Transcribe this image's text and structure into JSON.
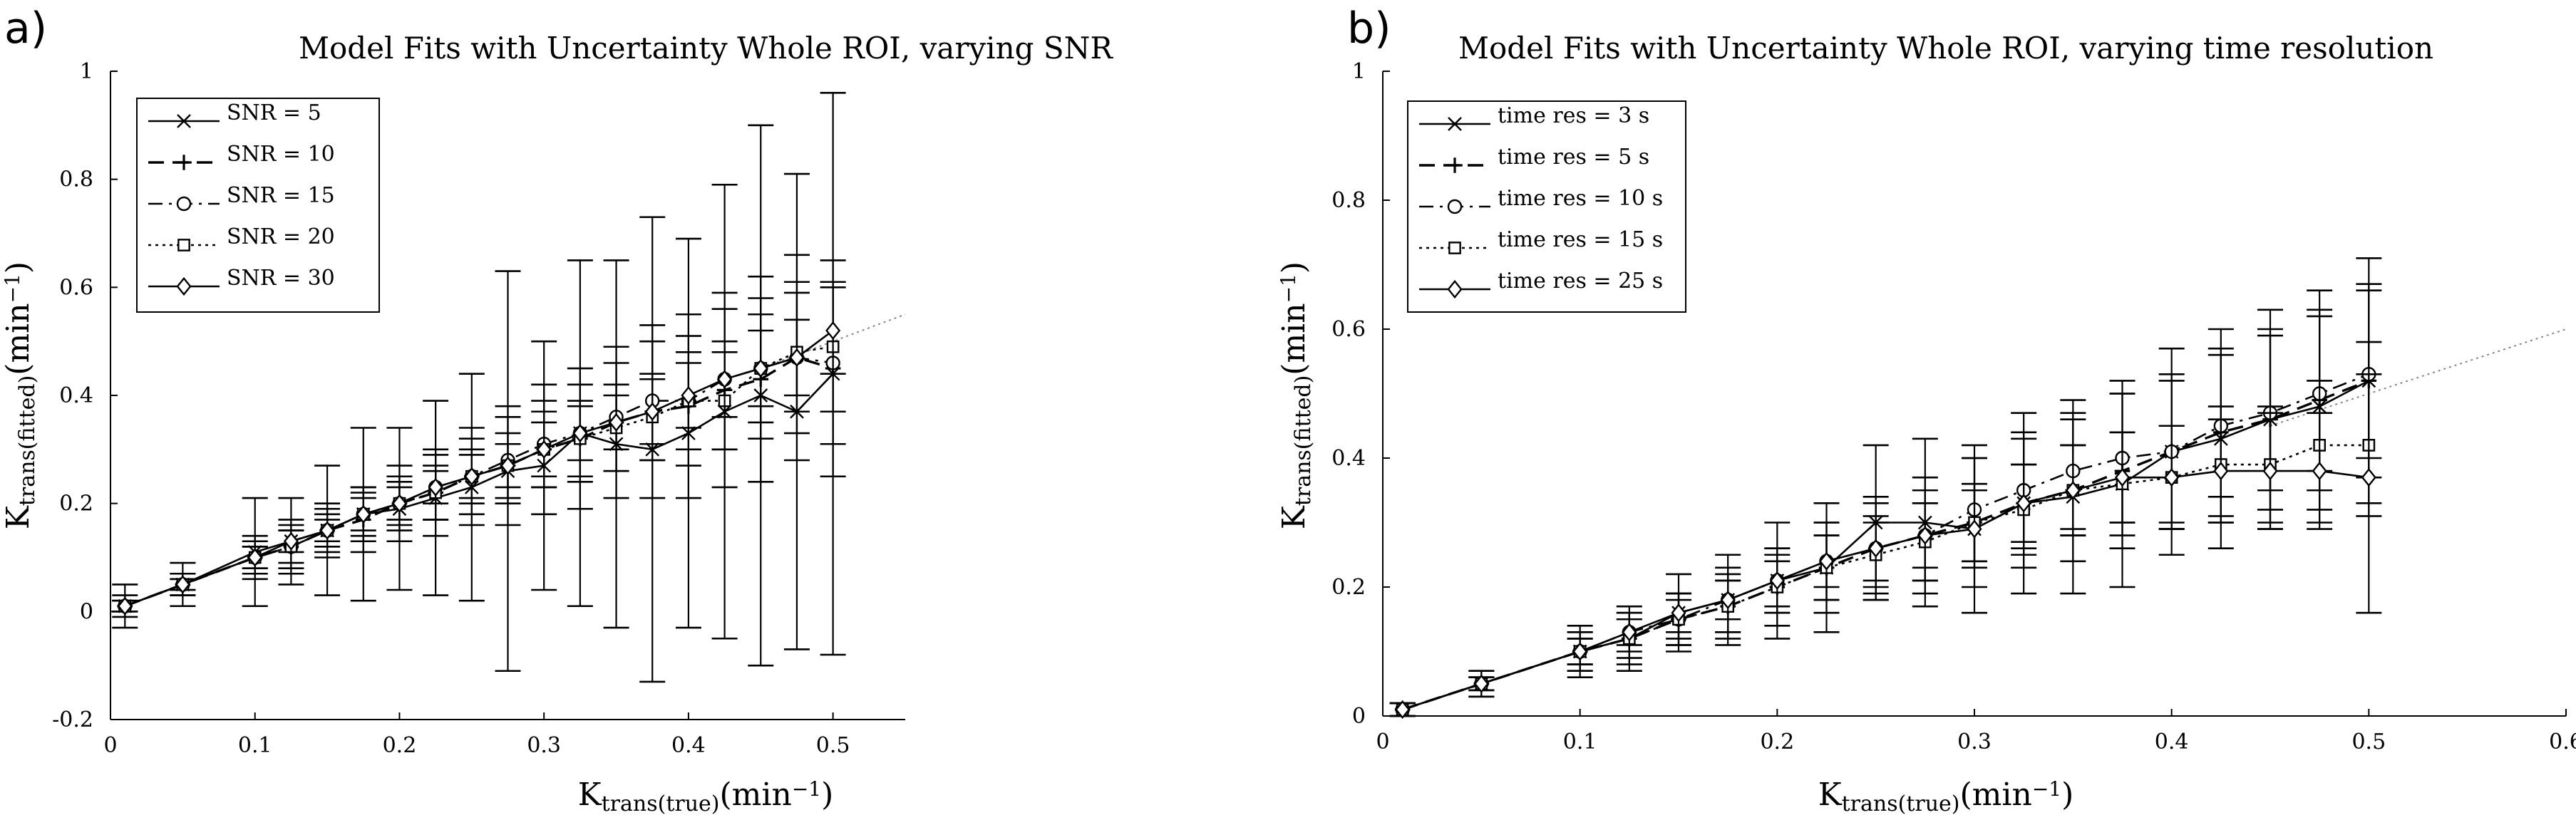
{
  "chart_data": [
    {
      "type": "line",
      "panel_label": "a)",
      "title": "Model Fits with Uncertainty Whole ROI, varying SNR",
      "xlabel": {
        "main": "K",
        "sub": "trans(true)",
        "unit": "(min",
        "sup": "−1",
        "close": ")"
      },
      "ylabel": {
        "main": "K",
        "sub": "trans(fitted)",
        "unit": "(min",
        "sup": "−1",
        "close": ")"
      },
      "xlim": [
        0,
        0.55
      ],
      "ylim": [
        -0.2,
        1
      ],
      "xticks": [
        {
          "v": 0,
          "label": "0"
        },
        {
          "v": 0.1,
          "label": "0.1"
        },
        {
          "v": 0.2,
          "label": "0.2"
        },
        {
          "v": 0.3,
          "label": "0.3"
        },
        {
          "v": 0.4,
          "label": "0.4"
        },
        {
          "v": 0.5,
          "label": "0.5"
        }
      ],
      "yticks": [
        {
          "v": -0.2,
          "label": "-0.2"
        },
        {
          "v": 0,
          "label": "0"
        },
        {
          "v": 0.2,
          "label": "0.2"
        },
        {
          "v": 0.4,
          "label": "0.4"
        },
        {
          "v": 0.6,
          "label": "0.6"
        },
        {
          "v": 0.8,
          "label": "0.8"
        },
        {
          "v": 1,
          "label": "1"
        }
      ],
      "identity_line": [
        0.45,
        0.55
      ],
      "legend_position": "top-left",
      "x": [
        0.01,
        0.05,
        0.1,
        0.125,
        0.15,
        0.175,
        0.2,
        0.225,
        0.25,
        0.275,
        0.3,
        0.325,
        0.35,
        0.375,
        0.4,
        0.425,
        0.45,
        0.475,
        0.5
      ],
      "series": [
        {
          "name": "SNR = 5",
          "marker": "x",
          "dash": "solid",
          "values": [
            0.01,
            0.05,
            0.11,
            0.13,
            0.15,
            0.18,
            0.19,
            0.21,
            0.23,
            0.26,
            0.27,
            0.33,
            0.31,
            0.3,
            0.33,
            0.37,
            0.4,
            0.37,
            0.44
          ],
          "errors": [
            0.04,
            0.04,
            0.1,
            0.08,
            0.12,
            0.16,
            0.15,
            0.18,
            0.21,
            0.37,
            0.23,
            0.32,
            0.34,
            0.43,
            0.36,
            0.42,
            0.5,
            0.44,
            0.52
          ]
        },
        {
          "name": "SNR = 10",
          "marker": "+",
          "dash": "longdash",
          "values": [
            0.01,
            0.05,
            0.1,
            0.12,
            0.15,
            0.17,
            0.2,
            0.22,
            0.25,
            0.27,
            0.3,
            0.32,
            0.35,
            0.37,
            0.38,
            0.41,
            0.43,
            0.47,
            0.45
          ],
          "errors": [
            0.02,
            0.02,
            0.04,
            0.05,
            0.05,
            0.06,
            0.07,
            0.08,
            0.09,
            0.11,
            0.12,
            0.13,
            0.14,
            0.16,
            0.17,
            0.18,
            0.19,
            0.19,
            0.2
          ]
        },
        {
          "name": "SNR =  15",
          "marker": "o",
          "dash": "dashdot",
          "values": [
            0.01,
            0.05,
            0.1,
            0.12,
            0.15,
            0.18,
            0.2,
            0.23,
            0.25,
            0.28,
            0.31,
            0.33,
            0.36,
            0.39,
            0.39,
            0.43,
            0.45,
            0.47,
            0.46
          ],
          "errors": [
            0.01,
            0.02,
            0.03,
            0.04,
            0.04,
            0.05,
            0.05,
            0.06,
            0.07,
            0.08,
            0.08,
            0.09,
            0.1,
            0.11,
            0.12,
            0.13,
            0.13,
            0.14,
            0.15
          ]
        },
        {
          "name": "SNR =  20",
          "marker": "square",
          "dash": "dotted",
          "values": [
            0.01,
            0.05,
            0.1,
            0.12,
            0.15,
            0.18,
            0.2,
            0.22,
            0.25,
            0.27,
            0.3,
            0.32,
            0.34,
            0.36,
            0.39,
            0.39,
            0.45,
            0.48,
            0.49
          ],
          "errors": [
            0.01,
            0.01,
            0.02,
            0.03,
            0.03,
            0.04,
            0.04,
            0.05,
            0.05,
            0.06,
            0.07,
            0.07,
            0.08,
            0.08,
            0.09,
            0.09,
            0.1,
            0.11,
            0.12
          ]
        },
        {
          "name": "SNR = 30",
          "marker": "diamond",
          "dash": "solid",
          "values": [
            0.01,
            0.05,
            0.1,
            0.13,
            0.15,
            0.18,
            0.2,
            0.23,
            0.25,
            0.27,
            0.3,
            0.33,
            0.35,
            0.37,
            0.4,
            0.43,
            0.45,
            0.47,
            0.52
          ],
          "errors": [
            0.01,
            0.01,
            0.02,
            0.02,
            0.02,
            0.03,
            0.03,
            0.03,
            0.04,
            0.04,
            0.05,
            0.05,
            0.05,
            0.06,
            0.06,
            0.07,
            0.07,
            0.07,
            0.08
          ]
        }
      ]
    },
    {
      "type": "line",
      "panel_label": "b)",
      "title": "Model Fits with Uncertainty Whole ROI, varying time resolution",
      "xlabel": {
        "main": "K",
        "sub": "trans(true)",
        "unit": "(min",
        "sup": "−1",
        "close": ")"
      },
      "ylabel": {
        "main": "K",
        "sub": "trans(fitted)",
        "unit": "(min",
        "sup": "−1",
        "close": ")"
      },
      "xlim": [
        0,
        0.6
      ],
      "ylim": [
        0,
        1
      ],
      "xticks": [
        {
          "v": 0,
          "label": "0"
        },
        {
          "v": 0.1,
          "label": "0.1"
        },
        {
          "v": 0.2,
          "label": "0.2"
        },
        {
          "v": 0.3,
          "label": "0.3"
        },
        {
          "v": 0.4,
          "label": "0.4"
        },
        {
          "v": 0.5,
          "label": "0.5"
        },
        {
          "v": 0.6,
          "label": "0.6"
        }
      ],
      "yticks": [
        {
          "v": 0,
          "label": "0"
        },
        {
          "v": 0.2,
          "label": "0.2"
        },
        {
          "v": 0.4,
          "label": "0.4"
        },
        {
          "v": 0.6,
          "label": "0.6"
        },
        {
          "v": 0.8,
          "label": "0.8"
        },
        {
          "v": 1,
          "label": "1"
        }
      ],
      "identity_line": [
        0.45,
        0.6
      ],
      "legend_position": "top-left",
      "x": [
        0.01,
        0.05,
        0.1,
        0.125,
        0.15,
        0.175,
        0.2,
        0.225,
        0.25,
        0.275,
        0.3,
        0.325,
        0.35,
        0.375,
        0.4,
        0.425,
        0.45,
        0.475,
        0.5
      ],
      "series": [
        {
          "name": "time res =  3 s",
          "marker": "x",
          "dash": "solid",
          "values": [
            0.01,
            0.05,
            0.1,
            0.12,
            0.16,
            0.18,
            0.21,
            0.23,
            0.3,
            0.3,
            0.29,
            0.33,
            0.34,
            0.36,
            0.41,
            0.43,
            0.46,
            0.48,
            0.52
          ],
          "errors": [
            0.01,
            0.02,
            0.04,
            0.05,
            0.06,
            0.07,
            0.09,
            0.1,
            0.12,
            0.13,
            0.13,
            0.14,
            0.15,
            0.16,
            0.16,
            0.17,
            0.17,
            0.18,
            0.19
          ]
        },
        {
          "name": "time res =  5 s",
          "marker": "+",
          "dash": "longdash",
          "values": [
            0.01,
            0.05,
            0.1,
            0.12,
            0.15,
            0.17,
            0.2,
            0.23,
            0.26,
            0.28,
            0.3,
            0.33,
            0.35,
            0.38,
            0.41,
            0.44,
            0.46,
            0.49,
            0.52
          ],
          "errors": [
            0.01,
            0.02,
            0.03,
            0.04,
            0.04,
            0.05,
            0.06,
            0.07,
            0.08,
            0.09,
            0.1,
            0.1,
            0.11,
            0.12,
            0.12,
            0.13,
            0.14,
            0.14,
            0.15
          ]
        },
        {
          "name": "time res =  10 s",
          "marker": "o",
          "dash": "dashdot",
          "values": [
            0.01,
            0.05,
            0.1,
            0.13,
            0.15,
            0.18,
            0.21,
            0.24,
            0.26,
            0.28,
            0.32,
            0.35,
            0.38,
            0.4,
            0.41,
            0.45,
            0.47,
            0.5,
            0.53
          ],
          "errors": [
            0.01,
            0.01,
            0.03,
            0.03,
            0.04,
            0.05,
            0.05,
            0.06,
            0.07,
            0.07,
            0.08,
            0.09,
            0.09,
            0.1,
            0.11,
            0.11,
            0.12,
            0.12,
            0.13
          ]
        },
        {
          "name": "time res =  15 s",
          "marker": "square",
          "dash": "dotted",
          "values": [
            0.01,
            0.05,
            0.1,
            0.12,
            0.15,
            0.17,
            0.2,
            0.23,
            0.25,
            0.27,
            0.3,
            0.32,
            0.35,
            0.36,
            0.37,
            0.39,
            0.39,
            0.42,
            0.42
          ],
          "errors": [
            0.01,
            0.01,
            0.02,
            0.03,
            0.03,
            0.04,
            0.04,
            0.05,
            0.05,
            0.06,
            0.06,
            0.07,
            0.07,
            0.08,
            0.08,
            0.09,
            0.09,
            0.1,
            0.11
          ]
        },
        {
          "name": "time res = 25 s",
          "marker": "diamond",
          "dash": "solid",
          "values": [
            0.01,
            0.05,
            0.1,
            0.13,
            0.16,
            0.18,
            0.21,
            0.24,
            0.26,
            0.28,
            0.29,
            0.33,
            0.35,
            0.37,
            0.37,
            0.38,
            0.38,
            0.38,
            0.37
          ],
          "errors": [
            0.01,
            0.01,
            0.02,
            0.02,
            0.03,
            0.03,
            0.04,
            0.04,
            0.05,
            0.05,
            0.06,
            0.06,
            0.07,
            0.07,
            0.08,
            0.08,
            0.09,
            0.09,
            0.21
          ]
        }
      ]
    }
  ]
}
